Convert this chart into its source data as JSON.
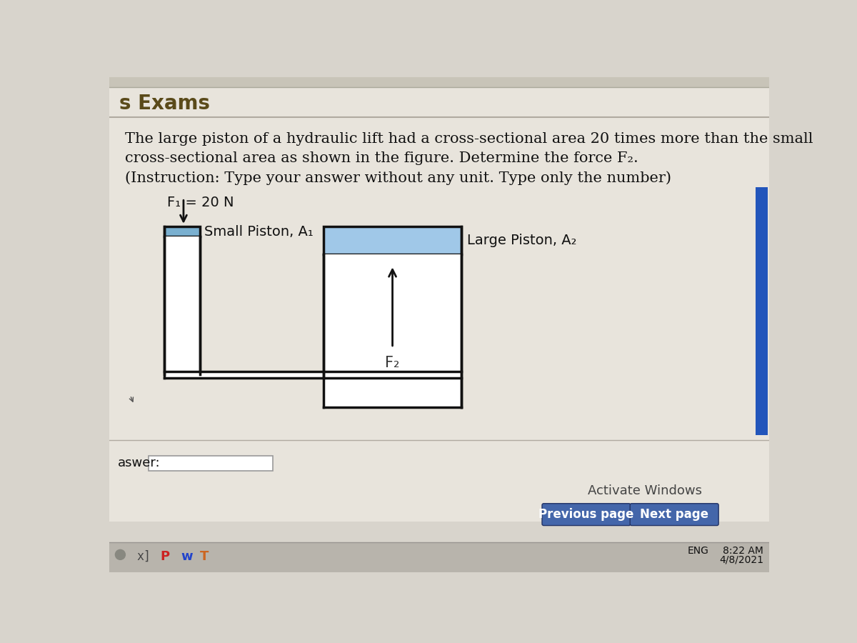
{
  "bg_color": "#d8d4cc",
  "title": "s Exams",
  "title_fontsize": 20,
  "title_color": "#5a4a1a",
  "problem_text_line1": "The large piston of a hydraulic lift had a cross-sectional area 20 times more than the small",
  "problem_text_line2": "cross-sectional area as shown in the figure. Determine the force F₂.",
  "problem_text_line3": "(Instruction: Type your answer without any unit. Type only the number)",
  "f1_label": "F₁ = 20 N",
  "small_piston_label": "Small Piston, A₁",
  "large_piston_label": "Large Piston, A₂",
  "f2_label": "F₂",
  "answer_label": "aswer:",
  "activate_windows_text": "Activate Windows",
  "prev_page_text": "Previous page",
  "next_page_text": "Next page",
  "time_text": "8:22 AM",
  "date_text": "4/8/2021",
  "eng_text": "ENG",
  "piston_outline_color": "#111111",
  "piston_top_color_small": "#7ab0d0",
  "piston_top_color_large": "#a0c8e8",
  "answer_box_color": "#ffffff",
  "button_color": "#4466aa",
  "button_text_color": "#ffffff",
  "scrollbar_color": "#2255bb",
  "content_bg": "#e8e4dc",
  "diagram_bg": "#e0dcd4",
  "taskbar_bg": "#b8b4ac",
  "header_bg": "#ccc8c0",
  "header_stripe_bg": "#c0bbb0"
}
